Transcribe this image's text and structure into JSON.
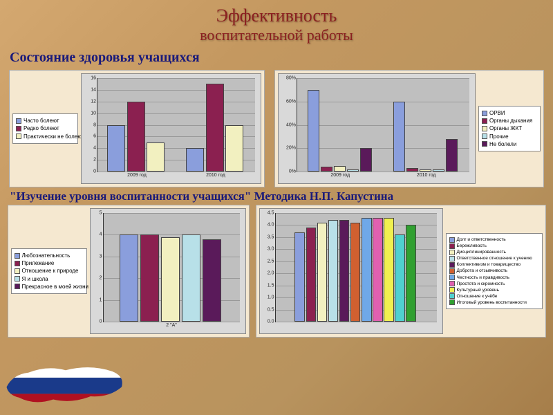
{
  "title1": "Эффективность",
  "title2": "воспитательной работы",
  "subtitle": "Состояние здоровья учащихся",
  "quote": "\"Изучение уровня воспитанности учащихся\" Методика Н.П. Капустина",
  "chart1": {
    "type": "bar",
    "categories": [
      "2009 год",
      "2010 год"
    ],
    "series": [
      {
        "label": "Часто болеют",
        "color": "#8a9edc",
        "values": [
          8,
          4
        ]
      },
      {
        "label": "Редко болеют",
        "color": "#8b2050",
        "values": [
          12,
          15
        ]
      },
      {
        "label": "Практически не болеют",
        "color": "#f2f0c0",
        "values": [
          5,
          8
        ]
      }
    ],
    "ylim": [
      0,
      16
    ],
    "ytick_step": 2,
    "plot_bg": "#bfbfbf",
    "panel_bg": "#d9d9d9",
    "label_fontsize": 7
  },
  "chart2": {
    "type": "bar",
    "categories": [
      "2009 год",
      "2010 год"
    ],
    "series": [
      {
        "label": "ОРВИ",
        "color": "#8a9edc",
        "values": [
          70,
          60
        ]
      },
      {
        "label": "Органы дыхания",
        "color": "#8b2050",
        "values": [
          4,
          3
        ]
      },
      {
        "label": "Органы ЖКТ",
        "color": "#f2f0c0",
        "values": [
          5,
          2
        ]
      },
      {
        "label": "Прочие",
        "color": "#b8e0e8",
        "values": [
          2,
          2
        ]
      },
      {
        "label": "Не болели",
        "color": "#5a1a5a",
        "values": [
          20,
          28
        ]
      }
    ],
    "ylim": [
      0,
      80
    ],
    "ytick_step": 20,
    "ysuffix": "%",
    "plot_bg": "#bfbfbf",
    "panel_bg": "#d9d9d9",
    "label_fontsize": 7
  },
  "chart3": {
    "type": "bar",
    "categories": [
      "2 \"А\""
    ],
    "series": [
      {
        "label": "Любознательность",
        "color": "#8a9edc",
        "values": [
          4.0
        ]
      },
      {
        "label": "Прилежание",
        "color": "#8b2050",
        "values": [
          4.0
        ]
      },
      {
        "label": "Отношение к природе",
        "color": "#f2f0c0",
        "values": [
          3.9
        ]
      },
      {
        "label": "Я и школа",
        "color": "#b8e0e8",
        "values": [
          4.0
        ]
      },
      {
        "label": "Прекрасное в моей жизни",
        "color": "#5a1a5a",
        "values": [
          3.8
        ]
      }
    ],
    "ylim": [
      0,
      5
    ],
    "ytick_step": 1,
    "plot_bg": "#bfbfbf",
    "panel_bg": "#d9d9d9",
    "label_fontsize": 7
  },
  "chart4": {
    "type": "bar",
    "categories": [
      ""
    ],
    "series": [
      {
        "label": "Долг и ответственность",
        "color": "#8a9edc",
        "values": [
          3.7
        ]
      },
      {
        "label": "Бережливость",
        "color": "#8b2050",
        "values": [
          3.9
        ]
      },
      {
        "label": "Дисциплинированность",
        "color": "#f2f0c0",
        "values": [
          4.1
        ]
      },
      {
        "label": "Ответственное отношение к учению",
        "color": "#b8e0e8",
        "values": [
          4.2
        ]
      },
      {
        "label": "Коллективизм и товарищество",
        "color": "#5a1a5a",
        "values": [
          4.2
        ]
      },
      {
        "label": "Доброта и отзывчивость",
        "color": "#d06030",
        "values": [
          4.1
        ]
      },
      {
        "label": "Честность и правдивость",
        "color": "#6fa8e8",
        "values": [
          4.3
        ]
      },
      {
        "label": "Простота и скромность",
        "color": "#e060b0",
        "values": [
          4.3
        ]
      },
      {
        "label": "Культурный уровень",
        "color": "#f0f050",
        "values": [
          4.3
        ]
      },
      {
        "label": "Отношение к учёбе",
        "color": "#50d0d0",
        "values": [
          3.6
        ]
      },
      {
        "label": "Итоговый уровень воспитанности",
        "color": "#30a030",
        "values": [
          4.0
        ]
      }
    ],
    "ylim": [
      0,
      4.5
    ],
    "ytick_step": 0.5,
    "plot_bg": "#bfbfbf",
    "panel_bg": "#d9d9d9",
    "label_fontsize": 7
  },
  "flag_colors": {
    "white": "#ffffff",
    "blue": "#1a3a8a",
    "red": "#b01020"
  }
}
